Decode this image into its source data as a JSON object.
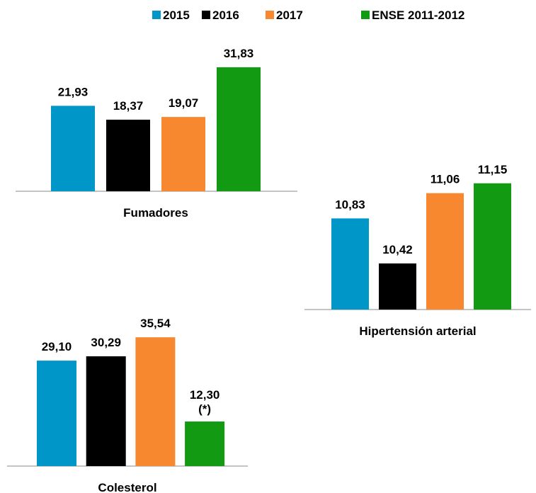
{
  "legend": {
    "series": [
      {
        "name": "2015",
        "color": "#0096c8"
      },
      {
        "name": "2016",
        "color": "#000000"
      },
      {
        "name": "2017",
        "color": "#f7882f"
      },
      {
        "name": "ENSE 2011-2012",
        "color": "#119a12"
      }
    ]
  },
  "chart_data": [
    {
      "type": "bar",
      "xlabel": "Fumadores",
      "values": [
        21.93,
        18.37,
        19.07,
        31.83
      ],
      "value_labels": [
        "21,93",
        "18,37",
        "19,07",
        "31,83"
      ],
      "ylim": [
        0,
        40
      ]
    },
    {
      "type": "bar",
      "xlabel": "Hipertensión arterial",
      "values": [
        10.83,
        10.42,
        11.06,
        11.15
      ],
      "value_labels": [
        "10,83",
        "10,42",
        "11,06",
        "11,15"
      ],
      "ylim": [
        10,
        11.4
      ]
    },
    {
      "type": "bar",
      "xlabel": "Colesterol",
      "values": [
        29.1,
        30.29,
        35.54,
        12.3
      ],
      "value_labels": [
        "29,10",
        "30,29",
        "35,54",
        "12,30"
      ],
      "value_annotations": [
        null,
        null,
        null,
        "(*)"
      ],
      "ylim": [
        0,
        43
      ]
    }
  ]
}
